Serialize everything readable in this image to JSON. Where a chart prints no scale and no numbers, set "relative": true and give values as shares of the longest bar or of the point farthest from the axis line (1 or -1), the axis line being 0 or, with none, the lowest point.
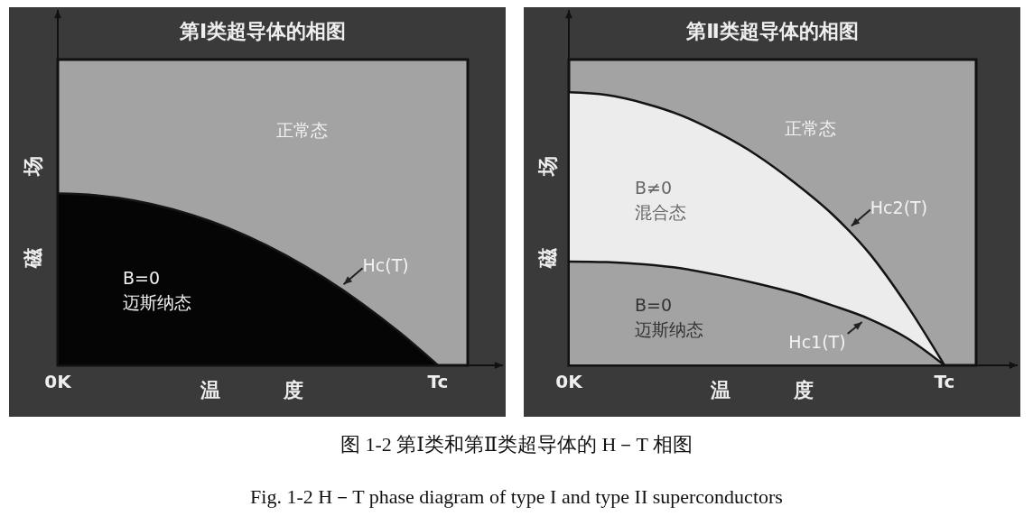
{
  "chart_data": [
    {
      "type": "area",
      "title": "第Ⅰ类超导体的相图",
      "xlabel": "温度",
      "ylabel": "磁场",
      "relative": true,
      "categories": [
        "0K",
        null,
        null,
        null,
        null,
        null,
        null,
        null,
        null,
        null,
        "Tc"
      ],
      "series": [
        {
          "name": "Hc(T)",
          "color": "#050505",
          "values": [
            1,
            0.99,
            0.96,
            0.91,
            0.84,
            0.75,
            0.64,
            0.51,
            0.36,
            0.19,
            0
          ]
        }
      ],
      "annotations": [
        "正常态",
        "B=0\n迈斯纳态"
      ]
    },
    {
      "type": "area",
      "title": "第Ⅱ类超导体的相图",
      "xlabel": "温度",
      "ylabel": "磁场",
      "relative": true,
      "categories": [
        "0K",
        null,
        null,
        null,
        null,
        null,
        null,
        null,
        null,
        null,
        "Tc"
      ],
      "series": [
        {
          "name": "Hc2(T)",
          "color": "#ececec",
          "values": [
            1,
            0.99,
            0.96,
            0.915,
            0.85,
            0.77,
            0.67,
            0.555,
            0.41,
            0.22,
            0
          ]
        },
        {
          "name": "Hc1(T)",
          "color": "#a3a3a3",
          "values": [
            0.38,
            0.378,
            0.37,
            0.355,
            0.33,
            0.3,
            0.265,
            0.22,
            0.17,
            0.1,
            0
          ]
        }
      ],
      "annotations": [
        "正常态",
        "B≠0\n混合态",
        "B=0\n迈斯纳态",
        "图 1-2 第Ⅰ类和第Ⅱ类超导体的 H－T 相图",
        "Fig. 1-2 H－T phase diagram of type I and type II superconductors"
      ]
    }
  ]
}
